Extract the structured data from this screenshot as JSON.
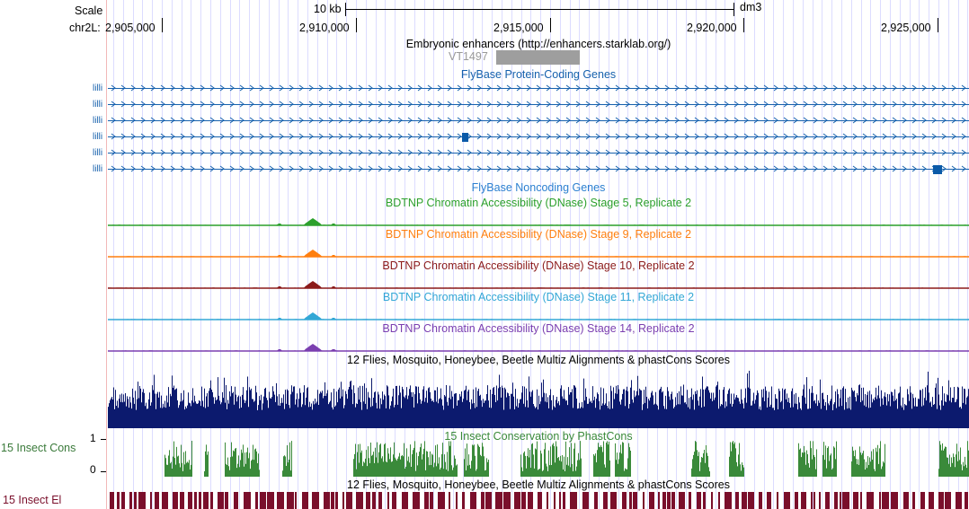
{
  "ruler": {
    "scale_label": "Scale",
    "scale_value": "10 kb",
    "assembly": "dm3",
    "chrom_label": "chr2L:",
    "positions": [
      "2,905,000",
      "2,910,000",
      "2,915,000",
      "2,920,000",
      "2,925,000"
    ]
  },
  "tracks": {
    "enhancers": {
      "title": "Embryonic enhancers (http://enhancers.starklab.org/)",
      "feature": "VT1497"
    },
    "protein_genes": {
      "title": "FlyBase Protein-Coding Genes",
      "rows": [
        {
          "label": "lilli"
        },
        {
          "label": "lilli"
        },
        {
          "label": "lilli"
        },
        {
          "label": "lilli"
        },
        {
          "label": "lilli"
        },
        {
          "label": "lilli"
        }
      ]
    },
    "noncoding_genes": {
      "title": "FlyBase Noncoding Genes"
    },
    "dnase": [
      {
        "title": "BDTNP Chromatin Accessibility (DNase) Stage 5, Replicate 2",
        "color": "#2ca02c"
      },
      {
        "title": "BDTNP Chromatin Accessibility (DNase) Stage 9, Replicate 2",
        "color": "#ff7f0e"
      },
      {
        "title": "BDTNP Chromatin Accessibility (DNase) Stage 10, Replicate 2",
        "color": "#8b1a1a"
      },
      {
        "title": "BDTNP Chromatin Accessibility (DNase) Stage 11, Replicate 2",
        "color": "#33a7d6"
      },
      {
        "title": "BDTNP Chromatin Accessibility (DNase) Stage 14, Replicate 2",
        "color": "#7b3fb0"
      }
    ],
    "multiz": {
      "title": "12 Flies, Mosquito, Honeybee, Beetle Multiz Alignments & phastCons Scores",
      "color": "#0c1a6e"
    },
    "phastcons": {
      "title": "15 Insect Conservation by PhastCons",
      "side_label": "15 Insect Cons",
      "axis_max": "1",
      "axis_min": "0",
      "color": "#3a8a3a"
    },
    "multiz2": {
      "title": "12 Flies, Mosquito, Honeybee, Beetle Multiz Alignments & phastCons Scores",
      "side_label": "15 Insect El",
      "color": "#7a0f2b"
    }
  }
}
